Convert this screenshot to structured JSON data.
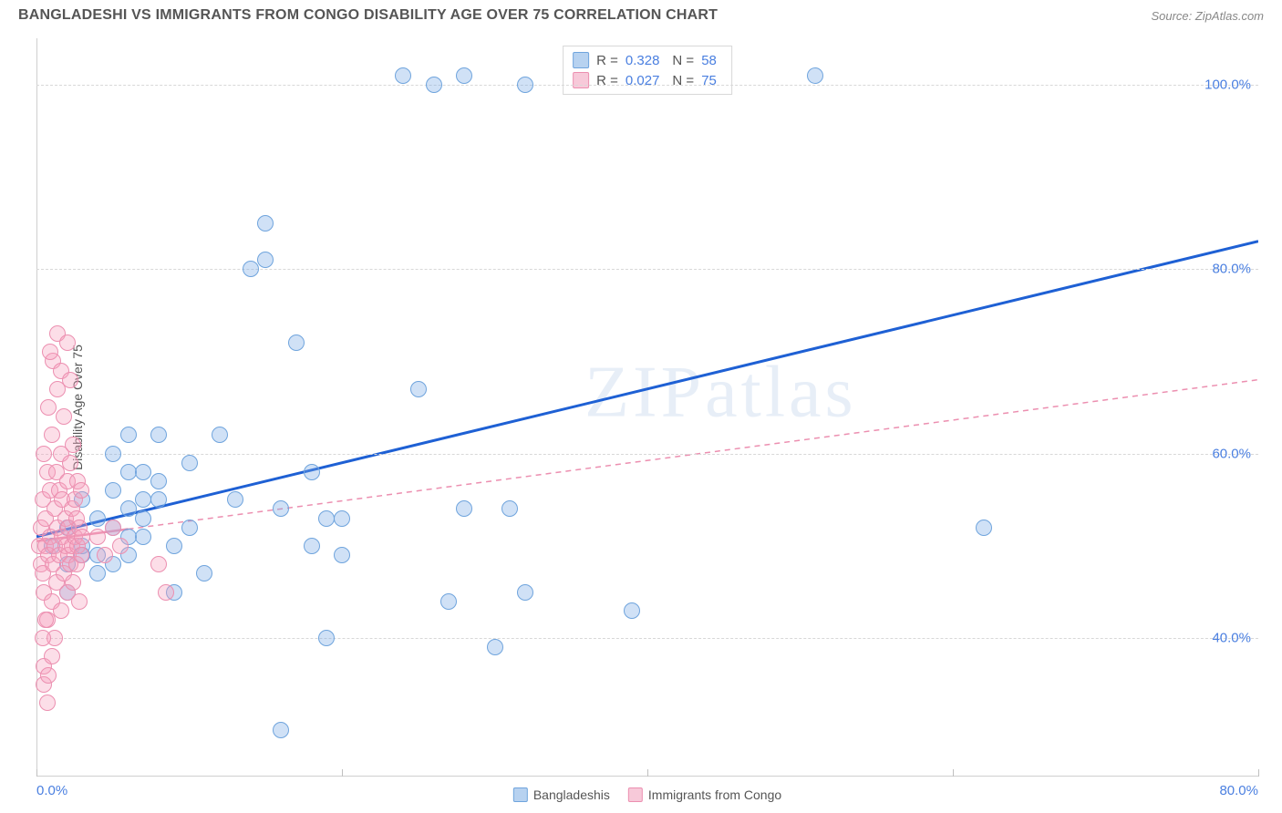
{
  "header": {
    "title": "BANGLADESHI VS IMMIGRANTS FROM CONGO DISABILITY AGE OVER 75 CORRELATION CHART",
    "source": "Source: ZipAtlas.com"
  },
  "chart": {
    "type": "scatter",
    "y_axis_label": "Disability Age Over 75",
    "watermark": "ZIPatlas",
    "background_color": "#ffffff",
    "grid_color": "#d8d8d8",
    "axis_color": "#cfcfcf",
    "tick_label_color": "#4a7fe0",
    "label_fontsize": 14,
    "tick_fontsize": 15,
    "xlim": [
      0,
      80
    ],
    "ylim": [
      25,
      105
    ],
    "x_ticks": [
      0,
      20,
      40,
      60,
      80
    ],
    "x_tick_labels": [
      "0.0%",
      "",
      "",
      "",
      "80.0%"
    ],
    "y_ticks": [
      40,
      60,
      80,
      100
    ],
    "y_tick_labels": [
      "40.0%",
      "60.0%",
      "80.0%",
      "100.0%"
    ],
    "marker_radius": 9,
    "marker_stroke_width": 1.5,
    "series": [
      {
        "name": "Bangladeshis",
        "color_fill": "rgba(120,170,230,0.35)",
        "color_stroke": "#6fa4dd",
        "swatch_fill": "#b7d2f0",
        "swatch_stroke": "#6fa4dd",
        "trend_color": "#1e60d4",
        "trend_width": 3,
        "trend_dash": "none",
        "trend_start": [
          0,
          51
        ],
        "trend_end": [
          80,
          83
        ],
        "R": "0.328",
        "N": "58",
        "points": [
          [
            1,
            50
          ],
          [
            2,
            52
          ],
          [
            2,
            48
          ],
          [
            3,
            55
          ],
          [
            3,
            50
          ],
          [
            4,
            53
          ],
          [
            4,
            47
          ],
          [
            5,
            60
          ],
          [
            5,
            52
          ],
          [
            5,
            56
          ],
          [
            6,
            58
          ],
          [
            6,
            49
          ],
          [
            6,
            62
          ],
          [
            7,
            55
          ],
          [
            7,
            51
          ],
          [
            8,
            62
          ],
          [
            8,
            57
          ],
          [
            9,
            50
          ],
          [
            9,
            45
          ],
          [
            10,
            59
          ],
          [
            10,
            52
          ],
          [
            11,
            47
          ],
          [
            12,
            62
          ],
          [
            13,
            55
          ],
          [
            14,
            80
          ],
          [
            15,
            85
          ],
          [
            15,
            81
          ],
          [
            16,
            54
          ],
          [
            17,
            72
          ],
          [
            18,
            58
          ],
          [
            18,
            50
          ],
          [
            19,
            40
          ],
          [
            19,
            53
          ],
          [
            20,
            49
          ],
          [
            20,
            53
          ],
          [
            24,
            101
          ],
          [
            25,
            67
          ],
          [
            27,
            44
          ],
          [
            28,
            54
          ],
          [
            26,
            100
          ],
          [
            28,
            101
          ],
          [
            30,
            39
          ],
          [
            31,
            54
          ],
          [
            32,
            45
          ],
          [
            32,
            100
          ],
          [
            39,
            43
          ],
          [
            3,
            49
          ],
          [
            4,
            49
          ],
          [
            5,
            48
          ],
          [
            6,
            51
          ],
          [
            7,
            53
          ],
          [
            8,
            55
          ],
          [
            51,
            101
          ],
          [
            62,
            52
          ],
          [
            16,
            30
          ],
          [
            6,
            54
          ],
          [
            7,
            58
          ],
          [
            2,
            45
          ]
        ]
      },
      {
        "name": "Immigrants from Congo",
        "color_fill": "rgba(245,160,190,0.35)",
        "color_stroke": "#ec8fb0",
        "swatch_fill": "#f7c9d9",
        "swatch_stroke": "#ec8fb0",
        "trend_color": "#ec8fb0",
        "trend_width": 1.5,
        "trend_dash": "6 5",
        "trend_start": [
          0,
          50.5
        ],
        "trend_end": [
          80,
          68
        ],
        "trend_solid_until": 6,
        "R": "0.027",
        "N": "75",
        "points": [
          [
            0.2,
            50
          ],
          [
            0.3,
            52
          ],
          [
            0.3,
            48
          ],
          [
            0.4,
            55
          ],
          [
            0.4,
            47
          ],
          [
            0.5,
            60
          ],
          [
            0.5,
            45
          ],
          [
            0.6,
            53
          ],
          [
            0.6,
            50
          ],
          [
            0.7,
            58
          ],
          [
            0.7,
            42
          ],
          [
            0.8,
            65
          ],
          [
            0.8,
            49
          ],
          [
            0.9,
            56
          ],
          [
            0.9,
            51
          ],
          [
            1.0,
            62
          ],
          [
            1.0,
            44
          ],
          [
            1.1,
            70
          ],
          [
            1.1,
            48
          ],
          [
            1.2,
            54
          ],
          [
            1.2,
            50
          ],
          [
            1.3,
            58
          ],
          [
            1.3,
            46
          ],
          [
            1.4,
            52
          ],
          [
            1.4,
            73
          ],
          [
            1.5,
            49
          ],
          [
            1.5,
            56
          ],
          [
            1.6,
            60
          ],
          [
            1.6,
            43
          ],
          [
            1.7,
            51
          ],
          [
            1.7,
            55
          ],
          [
            1.8,
            47
          ],
          [
            1.8,
            64
          ],
          [
            1.9,
            50
          ],
          [
            1.9,
            53
          ],
          [
            2.0,
            57
          ],
          [
            2.0,
            45
          ],
          [
            2.1,
            49
          ],
          [
            2.1,
            52
          ],
          [
            2.2,
            59
          ],
          [
            2.2,
            48
          ],
          [
            2.3,
            54
          ],
          [
            2.3,
            50
          ],
          [
            2.4,
            46
          ],
          [
            2.4,
            61
          ],
          [
            2.5,
            51
          ],
          [
            2.5,
            55
          ],
          [
            2.6,
            48
          ],
          [
            2.6,
            53
          ],
          [
            2.7,
            50
          ],
          [
            2.7,
            57
          ],
          [
            2.8,
            44
          ],
          [
            2.8,
            52
          ],
          [
            2.9,
            49
          ],
          [
            2.9,
            56
          ],
          [
            3.0,
            51
          ],
          [
            0.5,
            35
          ],
          [
            0.5,
            37
          ],
          [
            0.7,
            33
          ],
          [
            1.2,
            40
          ],
          [
            1.0,
            38
          ],
          [
            0.8,
            36
          ],
          [
            4.0,
            51
          ],
          [
            4.5,
            49
          ],
          [
            5.0,
            52
          ],
          [
            5.5,
            50
          ],
          [
            1.4,
            67
          ],
          [
            1.6,
            69
          ],
          [
            0.9,
            71
          ],
          [
            8.5,
            45
          ],
          [
            8.0,
            48
          ],
          [
            2.0,
            72
          ],
          [
            2.2,
            68
          ],
          [
            0.4,
            40
          ],
          [
            0.6,
            42
          ]
        ]
      }
    ],
    "legend": {
      "items": [
        "Bangladeshis",
        "Immigrants from Congo"
      ]
    },
    "stats_box": {
      "R_label": "R =",
      "N_label": "N ="
    }
  }
}
